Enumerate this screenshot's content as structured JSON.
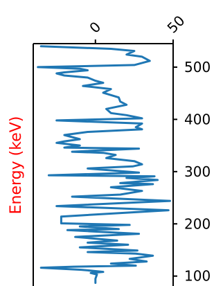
{
  "chart_data": {
    "type": "line",
    "orientation": "vertical",
    "title": "",
    "xlabel": "",
    "ylabel": "Energy (keV)",
    "ylabel_color": "#ff0000",
    "line_color": "#1f77b4",
    "xlim": [
      -40,
      50
    ],
    "ylim": [
      85,
      545
    ],
    "x_ticks": [
      0,
      50
    ],
    "x_tick_labels": [
      "0",
      "50"
    ],
    "y_ticks": [
      100,
      200,
      300,
      400,
      500
    ],
    "y_tick_labels": [
      "100",
      "200",
      "300",
      "400",
      "500"
    ],
    "x_axis_position": "top",
    "y_axis_position": "right",
    "grid": false,
    "series": [
      {
        "x": [
          0,
          0,
          1,
          -3,
          5,
          -5,
          -9,
          -35,
          -14,
          26,
          10,
          33,
          22,
          37,
          26,
          -5,
          27,
          -10,
          21,
          -5,
          14,
          -13,
          28,
          -5,
          -18,
          15,
          -10,
          22,
          -22,
          -22,
          47,
          -25,
          48,
          -15,
          16,
          30,
          10,
          37,
          16,
          40,
          20,
          38,
          -30,
          28,
          -5,
          24,
          30,
          25,
          7,
          13,
          5,
          -15,
          28,
          -20,
          -10,
          -25,
          -20,
          -10,
          -15,
          -20,
          -5,
          30,
          26,
          30,
          -25,
          30,
          20,
          10,
          7,
          20,
          16,
          15,
          5,
          10,
          -8,
          5,
          0,
          -5,
          -20,
          -25,
          -20,
          -5,
          -10,
          -37,
          25,
          35,
          30,
          20,
          25,
          10,
          -35
        ],
        "y": [
          87,
          95,
          103,
          106,
          108,
          111,
          112,
          116,
          118,
          120,
          124,
          128,
          133,
          139,
          143,
          146,
          149,
          155,
          160,
          164,
          168,
          175,
          181,
          186,
          188,
          190,
          195,
          198,
          201,
          214,
          226,
          234,
          244,
          252,
          256,
          263,
          270,
          276,
          278,
          284,
          288,
          291,
          293,
          298,
          306,
          310,
          314,
          320,
          326,
          332,
          336,
          338,
          344,
          346,
          350,
          355,
          358,
          362,
          366,
          370,
          376,
          381,
          385,
          392,
          398,
          402,
          408,
          412,
          420,
          428,
          434,
          442,
          451,
          458,
          464,
          470,
          474,
          480,
          484,
          488,
          490,
          494,
          497,
          500,
          504,
          512,
          520,
          524,
          531,
          535,
          540
        ]
      }
    ]
  }
}
